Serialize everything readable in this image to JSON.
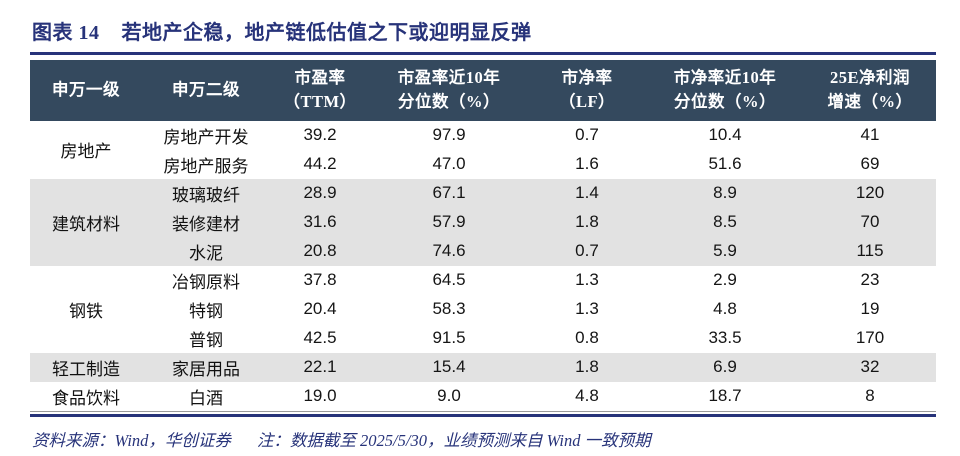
{
  "figure": {
    "label": "图表 14",
    "title": "若地产企稳，地产链低估值之下或迎明显反弹"
  },
  "colors": {
    "accent_navy": "#27337A",
    "header_bg": "#34495E",
    "header_text": "#FFFFFF",
    "shaded_row": "#E2E2E2"
  },
  "table": {
    "headers": [
      "申万一级",
      "申万二级",
      "市盈率\n（TTM）",
      "市盈率近10年\n分位数（%）",
      "市净率\n（LF）",
      "市净率近10年\n分位数（%）",
      "25E净利润\n增速（%）"
    ],
    "groups": [
      {
        "name": "房地产",
        "shaded": false,
        "rows": [
          {
            "name": "房地产开发",
            "values": [
              "39.2",
              "97.9",
              "0.7",
              "10.4",
              "41"
            ]
          },
          {
            "name": "房地产服务",
            "values": [
              "44.2",
              "47.0",
              "1.6",
              "51.6",
              "69"
            ]
          }
        ]
      },
      {
        "name": "建筑材料",
        "shaded": true,
        "rows": [
          {
            "name": "玻璃玻纤",
            "values": [
              "28.9",
              "67.1",
              "1.4",
              "8.9",
              "120"
            ]
          },
          {
            "name": "装修建材",
            "values": [
              "31.6",
              "57.9",
              "1.8",
              "8.5",
              "70"
            ]
          },
          {
            "name": "水泥",
            "values": [
              "20.8",
              "74.6",
              "0.7",
              "5.9",
              "115"
            ]
          }
        ]
      },
      {
        "name": "钢铁",
        "shaded": false,
        "rows": [
          {
            "name": "冶钢原料",
            "values": [
              "37.8",
              "64.5",
              "1.3",
              "2.9",
              "23"
            ]
          },
          {
            "name": "特钢",
            "values": [
              "20.4",
              "58.3",
              "1.3",
              "4.8",
              "19"
            ]
          },
          {
            "name": "普钢",
            "values": [
              "42.5",
              "91.5",
              "0.8",
              "33.5",
              "170"
            ]
          }
        ]
      },
      {
        "name": "轻工制造",
        "shaded": true,
        "rows": [
          {
            "name": "家居用品",
            "values": [
              "22.1",
              "15.4",
              "1.8",
              "6.9",
              "32"
            ]
          }
        ]
      },
      {
        "name": "食品饮料",
        "shaded": false,
        "rows": [
          {
            "name": "白酒",
            "values": [
              "19.0",
              "9.0",
              "4.8",
              "18.7",
              "8"
            ]
          }
        ]
      }
    ]
  },
  "footer": {
    "source": "资料来源：Wind，华创证券",
    "note": "注：数据截至 2025/5/30，业绩预测来自 Wind 一致预期"
  }
}
